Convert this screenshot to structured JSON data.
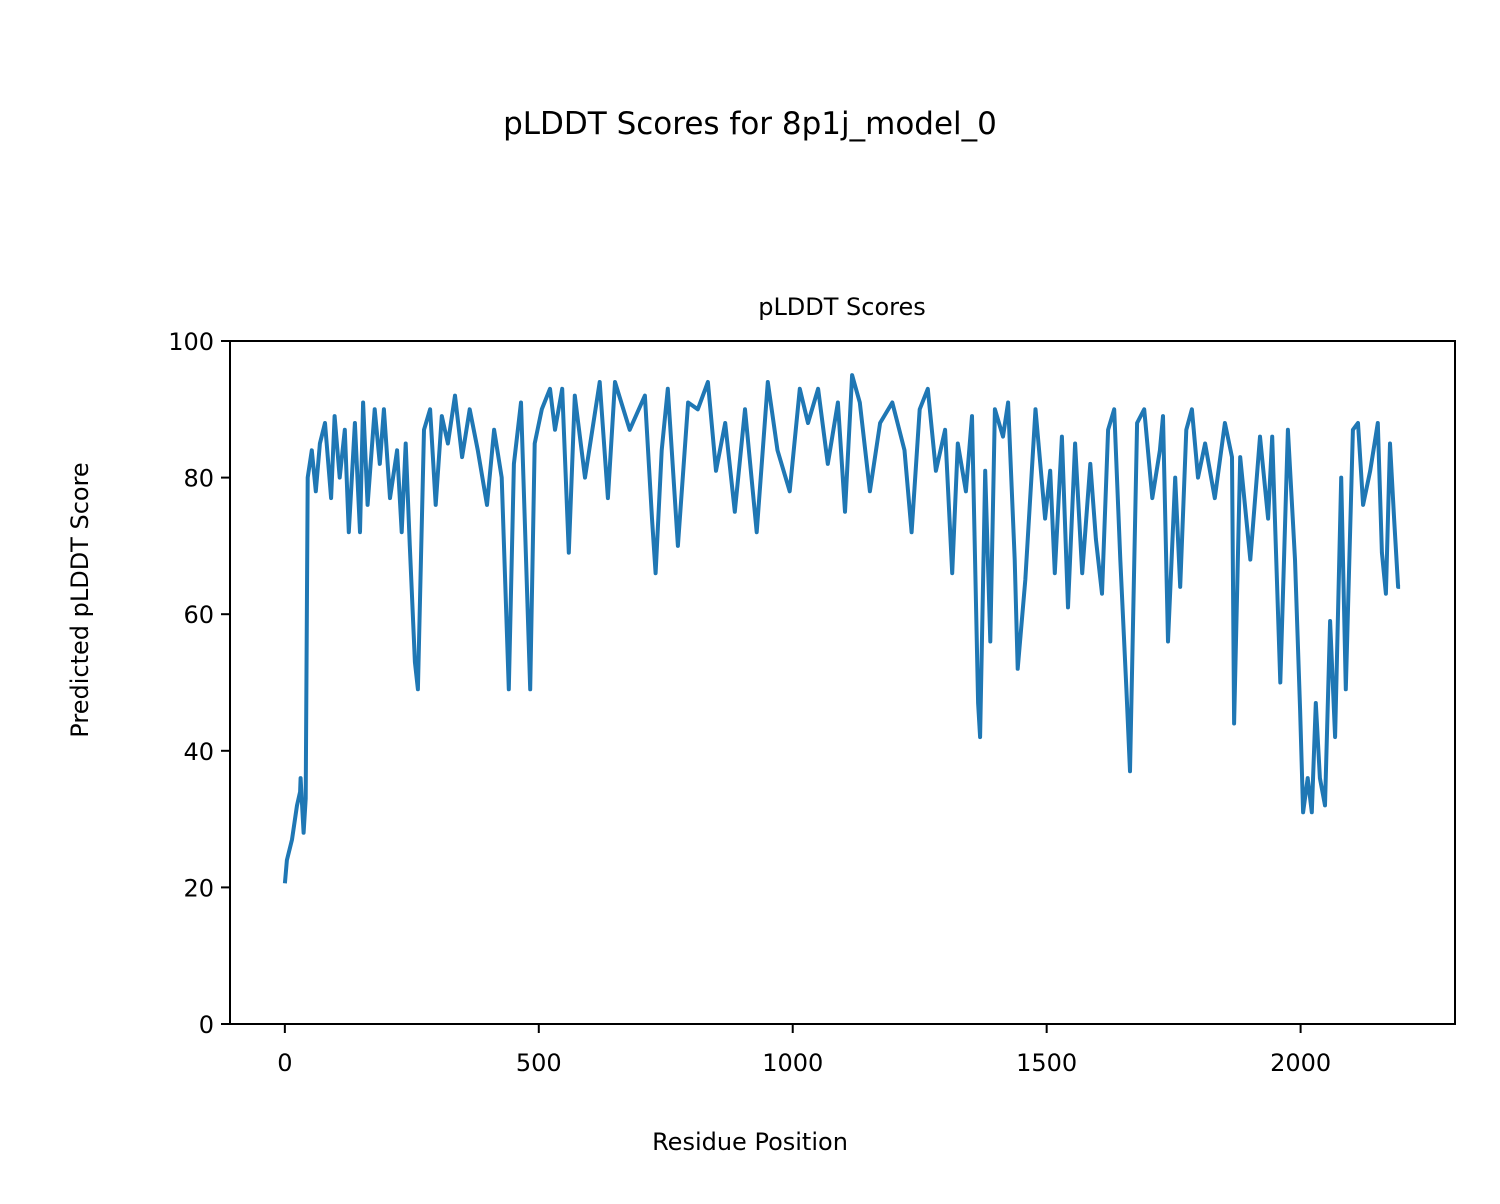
{
  "chart_data": {
    "type": "line",
    "title": "pLDDT Scores for 8p1j_model_0",
    "subtitle": "pLDDT Scores",
    "xlabel": "Residue Position",
    "ylabel": "Predicted pLDDT Score",
    "xlim": [
      -108,
      2304
    ],
    "ylim": [
      0,
      100
    ],
    "xticks": [
      0,
      500,
      1000,
      1500,
      2000
    ],
    "xtick_labels": [
      "0",
      "500",
      "1000",
      "1500",
      "2000"
    ],
    "yticks": [
      0,
      20,
      40,
      60,
      80,
      100
    ],
    "ytick_labels": [
      "0",
      "20",
      "40",
      "60",
      "80",
      "100"
    ],
    "grid": false,
    "series": [
      {
        "name": "pLDDT",
        "color": "#1f77b4",
        "x": [
          0,
          4,
          14,
          24,
          30,
          31,
          37,
          41,
          45,
          53,
          61,
          69,
          79,
          91,
          98,
          108,
          118,
          126,
          138,
          148,
          154,
          163,
          177,
          187,
          195,
          207,
          221,
          230,
          238,
          246,
          256,
          262,
          274,
          286,
          297,
          309,
          321,
          335,
          349,
          364,
          380,
          398,
          412,
          427,
          441,
          451,
          465,
          483,
          492,
          506,
          522,
          532,
          546,
          559,
          571,
          591,
          620,
          636,
          650,
          679,
          709,
          723,
          730,
          742,
          754,
          774,
          794,
          813,
          833,
          849,
          867,
          886,
          906,
          929,
          951,
          970,
          994,
          1014,
          1030,
          1050,
          1069,
          1089,
          1103,
          1117,
          1132,
          1152,
          1172,
          1196,
          1220,
          1234,
          1250,
          1266,
          1282,
          1300,
          1314,
          1325,
          1341,
          1353,
          1365,
          1369,
          1379,
          1389,
          1398,
          1414,
          1424,
          1437,
          1443,
          1458,
          1478,
          1497,
          1507,
          1516,
          1530,
          1542,
          1556,
          1570,
          1586,
          1597,
          1609,
          1621,
          1633,
          1645,
          1657,
          1664,
          1678,
          1692,
          1708,
          1723,
          1729,
          1739,
          1753,
          1763,
          1775,
          1786,
          1798,
          1812,
          1831,
          1851,
          1865,
          1869,
          1881,
          1901,
          1920,
          1936,
          1944,
          1960,
          1975,
          1989,
          1999,
          2005,
          2014,
          2022,
          2030,
          2038,
          2048,
          2058,
          2068,
          2080,
          2089,
          2103,
          2113,
          2123,
          2137,
          2152,
          2160,
          2168,
          2176,
          2184,
          2192,
          2196
        ],
        "y": [
          20.6,
          24,
          27,
          32,
          34,
          36,
          28,
          33,
          80,
          84,
          78,
          85,
          88,
          77,
          89,
          80,
          87,
          72,
          88,
          72,
          91,
          76,
          90,
          82,
          90,
          77,
          84,
          72,
          85,
          70,
          53,
          49,
          87,
          90,
          76,
          89,
          85,
          92,
          83,
          90,
          84,
          76,
          87,
          80,
          49,
          82,
          91,
          49,
          85,
          90,
          93,
          87,
          93,
          69,
          92,
          80,
          94,
          77,
          94,
          87,
          92,
          74,
          66,
          84,
          93,
          70,
          91,
          90,
          94,
          81,
          88,
          75,
          90,
          72,
          94,
          84,
          78,
          93,
          88,
          93,
          82,
          91,
          75,
          95,
          91,
          78,
          88,
          91,
          84,
          72,
          90,
          93,
          81,
          87,
          66,
          85,
          78,
          89,
          47,
          42,
          81,
          56,
          90,
          86,
          91,
          68,
          52,
          65,
          90,
          74,
          81,
          66,
          86,
          61,
          85,
          66,
          82,
          71,
          63,
          87,
          90,
          68,
          49,
          37,
          88,
          90,
          77,
          84,
          89,
          56,
          80,
          64,
          87,
          90,
          80,
          85,
          77,
          88,
          83,
          44,
          83,
          68,
          86,
          74,
          86,
          50,
          87,
          68,
          46,
          31,
          36,
          31,
          47,
          36,
          32,
          59,
          42,
          80,
          49,
          87,
          88,
          76,
          81,
          88,
          69,
          63,
          85,
          74,
          64,
          64
        ]
      }
    ]
  }
}
